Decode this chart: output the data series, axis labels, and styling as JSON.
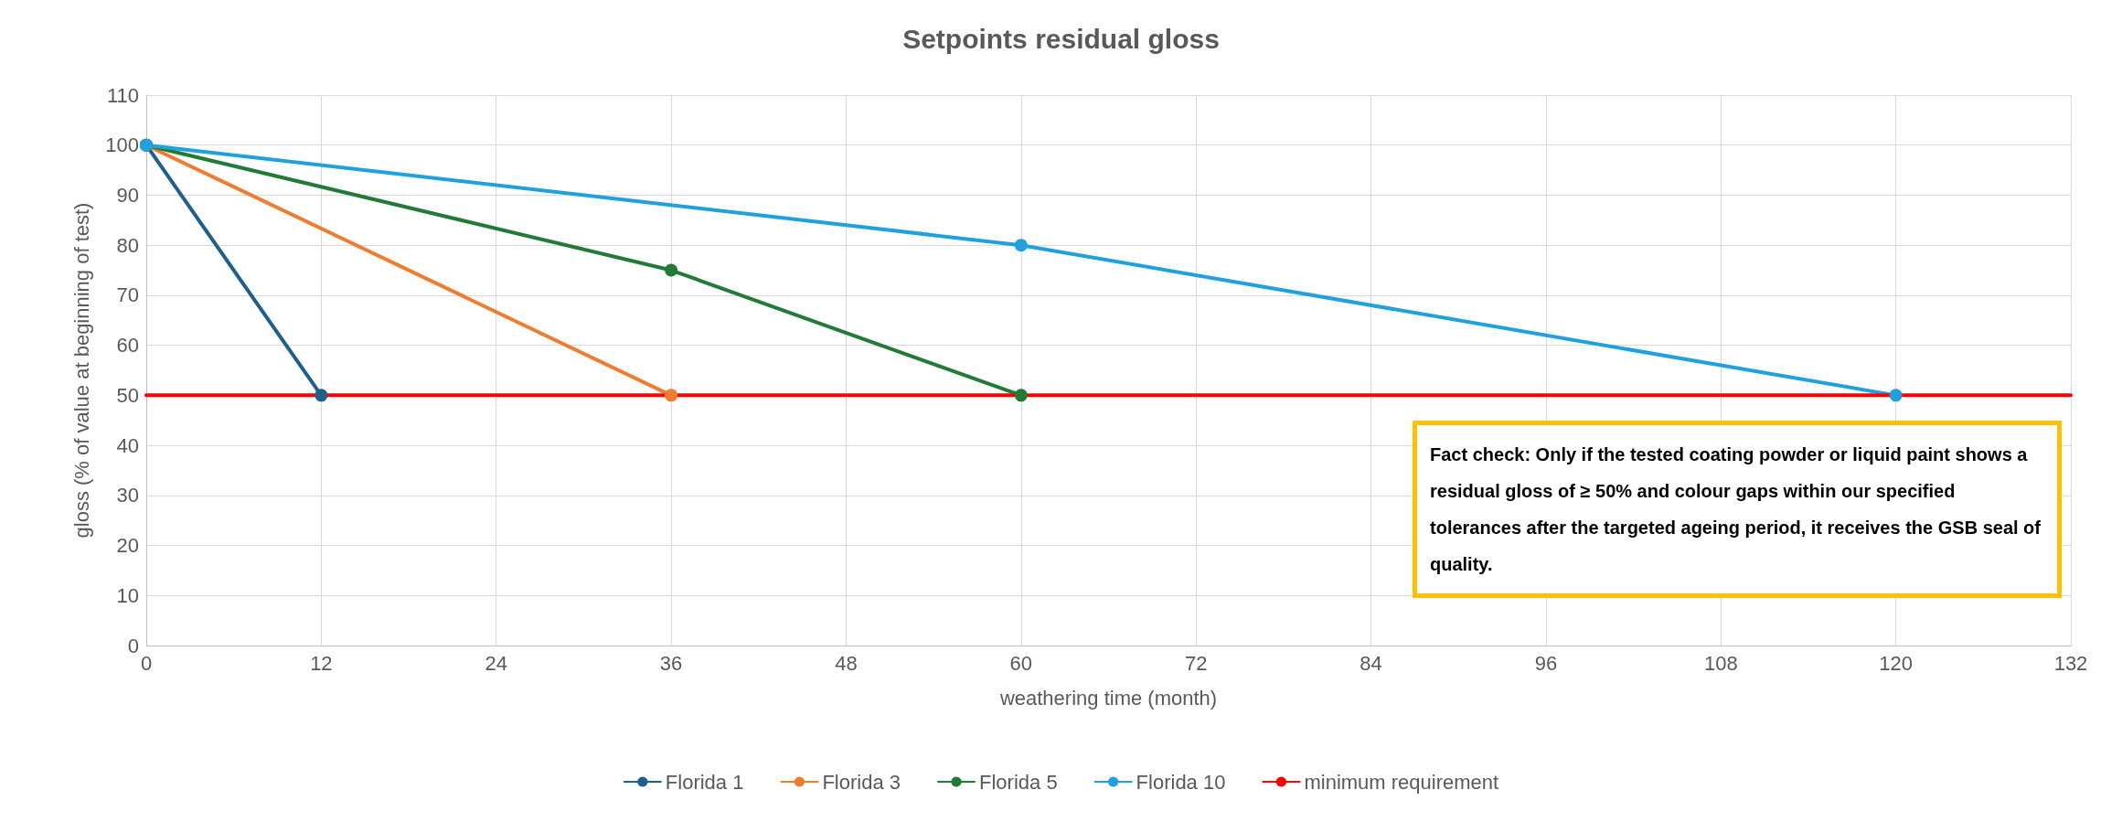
{
  "chart_data": {
    "type": "line",
    "title": "Setpoints residual gloss",
    "xlabel": "weathering time (month)",
    "ylabel": "gloss (% of value at beginning of test)",
    "xlim": [
      0,
      132
    ],
    "xticks": [
      0,
      12,
      24,
      36,
      48,
      60,
      72,
      84,
      96,
      108,
      120,
      132
    ],
    "ylim": [
      0,
      110
    ],
    "yticks": [
      0,
      10,
      20,
      30,
      40,
      50,
      60,
      70,
      80,
      90,
      100,
      110
    ],
    "grid": true,
    "legend": "bottom",
    "marker": "circle",
    "line_style": "solid",
    "series": [
      {
        "name": "Florida 1",
        "color": "#1f5f8b",
        "x": [
          0,
          12
        ],
        "values": [
          100,
          50
        ]
      },
      {
        "name": "Florida 3",
        "color": "#ed7d31",
        "x": [
          0,
          36
        ],
        "values": [
          100,
          50
        ]
      },
      {
        "name": "Florida 5",
        "color": "#217a36",
        "x": [
          0,
          36,
          60
        ],
        "values": [
          100,
          75,
          50
        ]
      },
      {
        "name": "Florida 10",
        "color": "#20a0dc",
        "x": [
          0,
          60,
          120
        ],
        "values": [
          100,
          80,
          50
        ]
      },
      {
        "name": "minimum requirement",
        "color": "#ff0000",
        "x": [
          0,
          132
        ],
        "values": [
          50,
          50
        ],
        "marker": "none"
      }
    ],
    "annotations": [
      "Fact check: Only if the tested coating powder or liquid paint shows a residual gloss of ≥ 50% and colour gaps within our specified tolerances after the targeted ageing period, it receives the GSB seal of quality."
    ]
  }
}
